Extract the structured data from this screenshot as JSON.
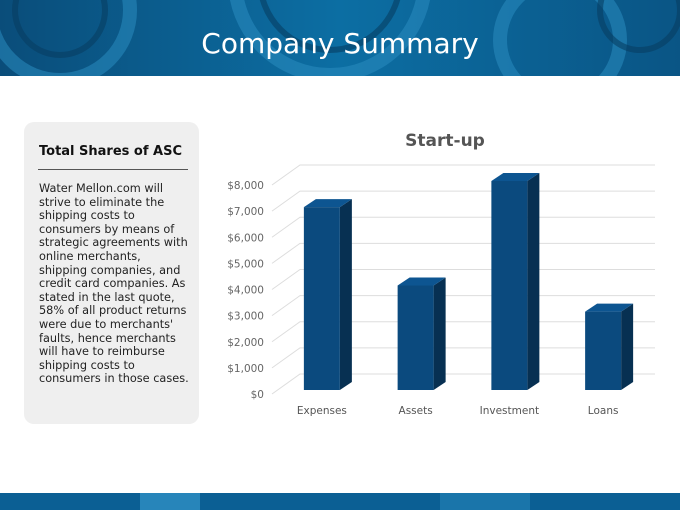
{
  "header": {
    "title": "Company Summary"
  },
  "panel": {
    "title": "Total Shares of ASC",
    "text": "Water Mellon.com will strive to eliminate the shipping costs to consumers by means of strategic agreements with online merchants, shipping companies, and credit card companies. As stated in the last quote, 58% of all product returns were due to merchants' faults, hence merchants will have to reimburse shipping costs to consumers in those cases."
  },
  "chart_data": {
    "type": "bar3d",
    "title": "Start-up",
    "categories": [
      "Expenses",
      "Assets",
      "Investment",
      "Loans"
    ],
    "values": [
      7000,
      4000,
      8000,
      3000
    ],
    "color": "#0b4a7e",
    "ylim": [
      0,
      8000
    ],
    "yticks": [
      {
        "value": 0,
        "label": "$0"
      },
      {
        "value": 1000,
        "label": "$1,000"
      },
      {
        "value": 2000,
        "label": "$2,000"
      },
      {
        "value": 3000,
        "label": "$3,000"
      },
      {
        "value": 4000,
        "label": "$4,000"
      },
      {
        "value": 5000,
        "label": "$5,000"
      },
      {
        "value": 6000,
        "label": "$6,000"
      },
      {
        "value": 7000,
        "label": "$7,000"
      },
      {
        "value": 8000,
        "label": "$8,000"
      }
    ],
    "grid": true
  }
}
